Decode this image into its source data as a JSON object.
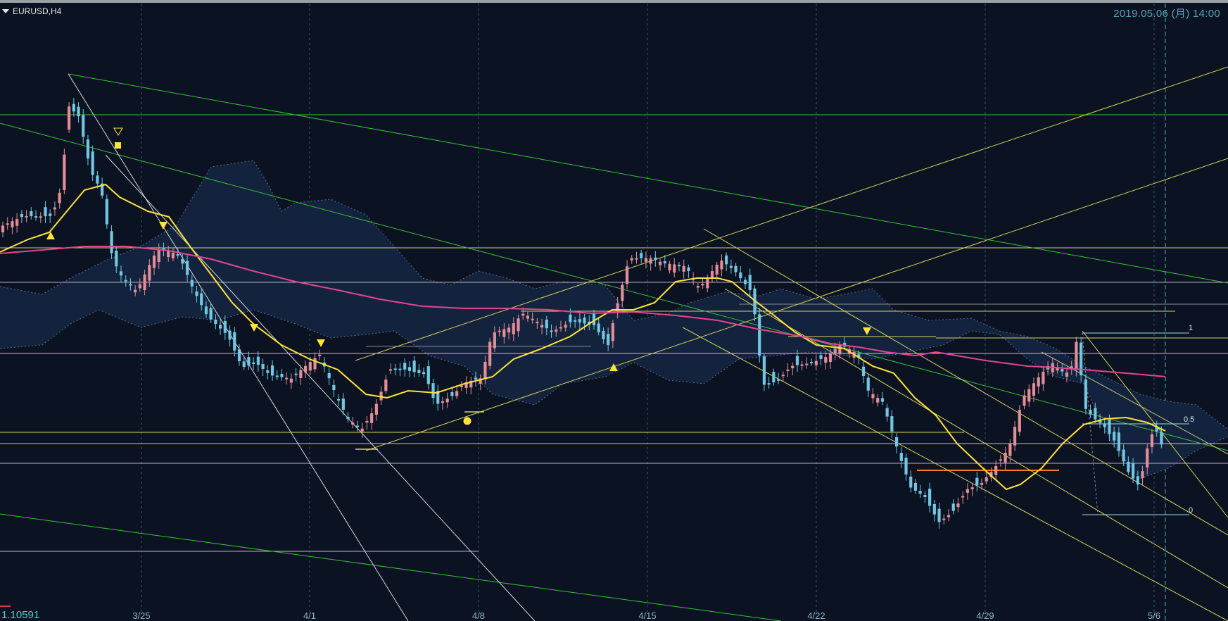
{
  "symbol": {
    "label": "EURUSD,H4"
  },
  "timestamp": "2019.05.06 (月) 14:00",
  "current_price": "1.10591",
  "x_axis": {
    "labels": [
      "3/25",
      "4/1",
      "4/8",
      "4/15",
      "4/22",
      "4/29",
      "5/6"
    ]
  },
  "fib": {
    "levels": [
      "1",
      "0.5",
      "0"
    ]
  },
  "colors": {
    "background": "#0b1322",
    "bull_candle": "#e38d97",
    "bear_candle": "#71c7e2",
    "ma_short": "#ffe23a",
    "ma_long": "#e3458f",
    "cloud": "#13233d",
    "trend_green": "#3bbf3b",
    "trend_yellow": "#d6d35a",
    "trend_white": "#d8d8d8",
    "level_lilac": "#c9a6d8",
    "level_orange": "#ff7a1a",
    "fib": "#9fd8e6"
  },
  "icons": [
    "dropdown-triangle-icon",
    "up-arrow-marker-icon",
    "down-arrow-marker-icon",
    "square-marker-icon",
    "circle-marker-icon"
  ]
}
